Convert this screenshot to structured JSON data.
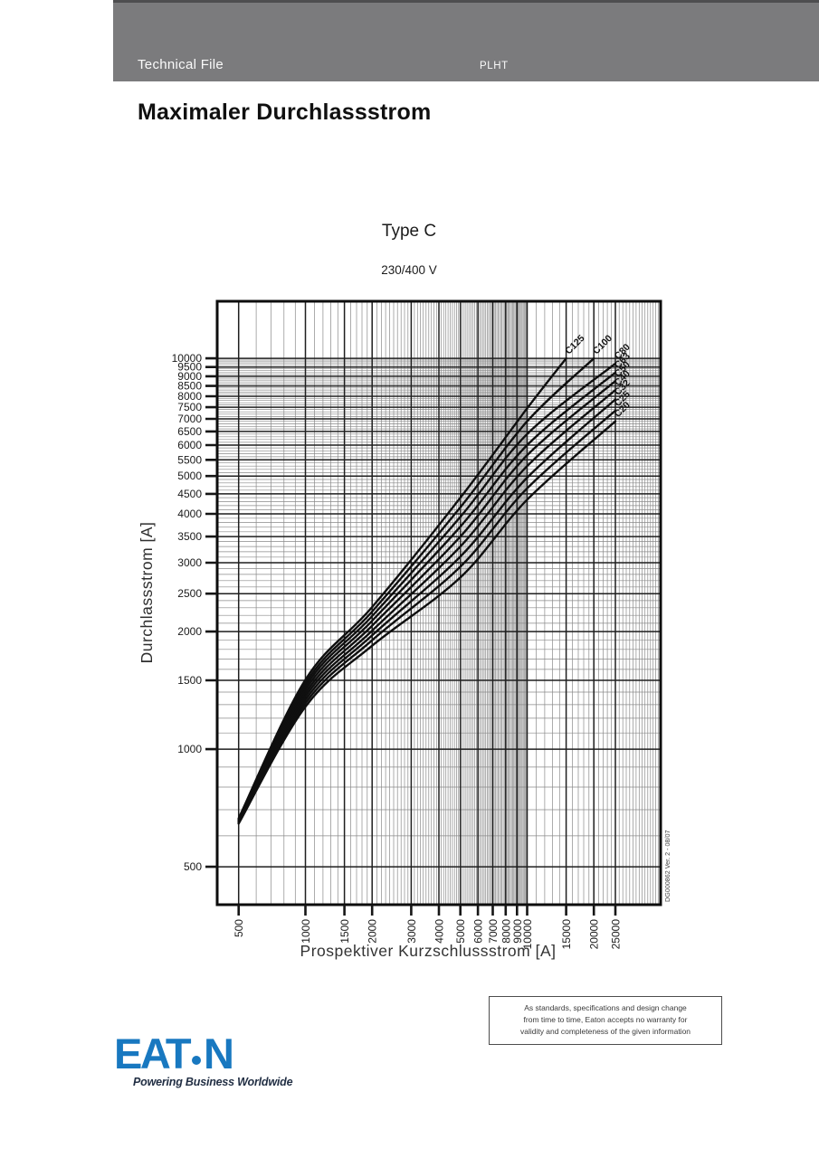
{
  "header": {
    "left_label": "Technical File",
    "product_code": "PLHT"
  },
  "page_title": "Maximaler Durchlassstrom",
  "doc_ref": "DG000862  Ver. 2 - 08/07",
  "disclaimer": {
    "line1": "As standards, specifications and design change",
    "line2": "from time to time, Eaton accepts no warranty for",
    "line3": "validity and completeness of the given information"
  },
  "footer_logo": {
    "brand": "EATON",
    "letter_e": "E",
    "letter_a": "A",
    "letter_t": "T",
    "letter_n": "N",
    "tagline": "Powering Business Worldwide",
    "brand_color": "#1878c0",
    "tagline_color": "#222f44"
  },
  "chart_data": {
    "type": "line",
    "title": "Type C",
    "subtitle": "230/400 V",
    "xlabel": "Prospektiver Kurzschlussstrom [A]",
    "ylabel": "Durchlassstrom  [A]",
    "x_scale": "log",
    "y_scale": "log",
    "xlim": [
      400,
      40000
    ],
    "ylim": [
      400,
      14000
    ],
    "h_grid_max": 10000,
    "grid": "log minor lines every 100 A (every 1000 A above 10000 A on x)",
    "legend_position": "labels at curve ends, rotated 45 deg",
    "x_ticks": [
      500,
      1000,
      1500,
      2000,
      3000,
      4000,
      5000,
      6000,
      7000,
      8000,
      9000,
      10000,
      15000,
      20000,
      25000
    ],
    "y_ticks": [
      500,
      1000,
      1500,
      2000,
      2500,
      3000,
      3500,
      4000,
      4500,
      5000,
      5500,
      6000,
      6500,
      7000,
      7500,
      8000,
      8500,
      9000,
      9500,
      10000
    ],
    "series": [
      {
        "name": "C125",
        "points": [
          [
            500,
            665
          ],
          [
            1000,
            1505
          ],
          [
            2000,
            2310
          ],
          [
            5000,
            4400
          ],
          [
            10000,
            7450
          ],
          [
            15000,
            10000
          ]
        ]
      },
      {
        "name": "C100",
        "points": [
          [
            500,
            662
          ],
          [
            1000,
            1475
          ],
          [
            2000,
            2250
          ],
          [
            5000,
            4160
          ],
          [
            10000,
            6900
          ],
          [
            20000,
            10000
          ]
        ]
      },
      {
        "name": "C80",
        "points": [
          [
            500,
            660
          ],
          [
            1000,
            1448
          ],
          [
            2000,
            2190
          ],
          [
            5000,
            3930
          ],
          [
            10000,
            6400
          ],
          [
            25000,
            9700
          ]
        ]
      },
      {
        "name": "C63",
        "points": [
          [
            500,
            658
          ],
          [
            1000,
            1420
          ],
          [
            2000,
            2130
          ],
          [
            5000,
            3710
          ],
          [
            10000,
            6000
          ],
          [
            25000,
            9200
          ]
        ]
      },
      {
        "name": "C50",
        "points": [
          [
            500,
            656
          ],
          [
            1000,
            1392
          ],
          [
            2000,
            2070
          ],
          [
            5000,
            3500
          ],
          [
            10000,
            5650
          ],
          [
            25000,
            8750
          ]
        ]
      },
      {
        "name": "C40",
        "points": [
          [
            500,
            653
          ],
          [
            1000,
            1365
          ],
          [
            2000,
            2010
          ],
          [
            5000,
            3300
          ],
          [
            10000,
            5300
          ],
          [
            25000,
            8300
          ]
        ]
      },
      {
        "name": "C32",
        "points": [
          [
            500,
            650
          ],
          [
            1000,
            1338
          ],
          [
            2000,
            1955
          ],
          [
            5000,
            3110
          ],
          [
            10000,
            4950
          ],
          [
            25000,
            7850
          ]
        ]
      },
      {
        "name": "C25",
        "points": [
          [
            500,
            648
          ],
          [
            1000,
            1311
          ],
          [
            2000,
            1900
          ],
          [
            5000,
            2930
          ],
          [
            10000,
            4650
          ],
          [
            25000,
            7350
          ]
        ]
      },
      {
        "name": "C20",
        "points": [
          [
            500,
            645
          ],
          [
            1000,
            1285
          ],
          [
            2000,
            1840
          ],
          [
            5000,
            2750
          ],
          [
            10000,
            4350
          ],
          [
            25000,
            6900
          ]
        ]
      }
    ]
  }
}
